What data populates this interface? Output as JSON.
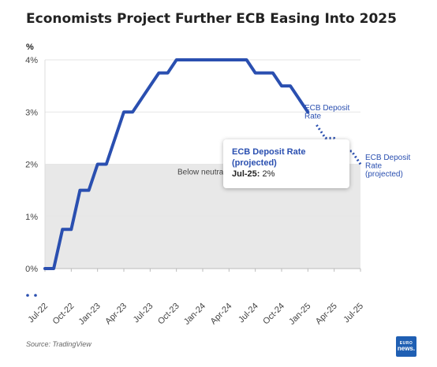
{
  "page": {
    "title": "Economists Project Further ECB Easing Into 2025",
    "source": "Source: TradingView",
    "logo_line1": "EURO",
    "logo_line2": "news."
  },
  "tooltip": {
    "title_line1": "ECB Deposit Rate",
    "title_line2": "(projected)",
    "label": "Jul-25:",
    "value": "2%"
  },
  "colors": {
    "line": "#2a4fb0",
    "band": "#e8e8e8",
    "grid": "#e6e6e6",
    "text": "#444444"
  },
  "chart_data": {
    "type": "line",
    "title": "Economists Project Further ECB Easing Into 2025",
    "ylabel": "%",
    "xlim": [
      "2022-07",
      "2025-07"
    ],
    "ylim": [
      0,
      4
    ],
    "x_ticks": [
      "Jul-22",
      "Oct-22",
      "Jan-23",
      "Apr-23",
      "Jul-23",
      "Oct-23",
      "Jan-24",
      "Apr-24",
      "Jul-24",
      "Oct-24",
      "Jan-25",
      "Apr-25",
      "Jul-25"
    ],
    "y_ticks": [
      "0%",
      "1%",
      "2%",
      "3%",
      "4%"
    ],
    "band": {
      "y_from": 0,
      "y_to": 2,
      "label": "Below neutral"
    },
    "series": [
      {
        "name": "ECB Deposit Rate",
        "style": "solid",
        "label_lines": [
          "ECB Deposit",
          "Rate"
        ],
        "points": [
          [
            "2022-07",
            0
          ],
          [
            "2022-08",
            0
          ],
          [
            "2022-09",
            0.75
          ],
          [
            "2022-10",
            0.75
          ],
          [
            "2022-11",
            1.5
          ],
          [
            "2022-12",
            1.5
          ],
          [
            "2023-01",
            2.0
          ],
          [
            "2023-02",
            2.0
          ],
          [
            "2023-03",
            2.5
          ],
          [
            "2023-04",
            3.0
          ],
          [
            "2023-05",
            3.0
          ],
          [
            "2023-06",
            3.25
          ],
          [
            "2023-07",
            3.5
          ],
          [
            "2023-08",
            3.75
          ],
          [
            "2023-09",
            3.75
          ],
          [
            "2023-10",
            4.0
          ],
          [
            "2023-11",
            4.0
          ],
          [
            "2023-12",
            4.0
          ],
          [
            "2024-01",
            4.0
          ],
          [
            "2024-02",
            4.0
          ],
          [
            "2024-03",
            4.0
          ],
          [
            "2024-04",
            4.0
          ],
          [
            "2024-05",
            4.0
          ],
          [
            "2024-06",
            4.0
          ],
          [
            "2024-07",
            3.75
          ],
          [
            "2024-08",
            3.75
          ],
          [
            "2024-09",
            3.75
          ],
          [
            "2024-10",
            3.5
          ],
          [
            "2024-11",
            3.5
          ],
          [
            "2024-12",
            3.25
          ],
          [
            "2025-01",
            3.0
          ]
        ]
      },
      {
        "name": "ECB Deposit Rate (projected)",
        "style": "dotted",
        "label_lines": [
          "ECB Deposit",
          "Rate",
          "(projected)"
        ],
        "points": [
          [
            "2025-02",
            2.75
          ],
          [
            "2025-03",
            2.5
          ],
          [
            "2025-04",
            2.5
          ],
          [
            "2025-05",
            2.25
          ],
          [
            "2025-06",
            2.25
          ],
          [
            "2025-07",
            2.0
          ]
        ]
      }
    ]
  }
}
